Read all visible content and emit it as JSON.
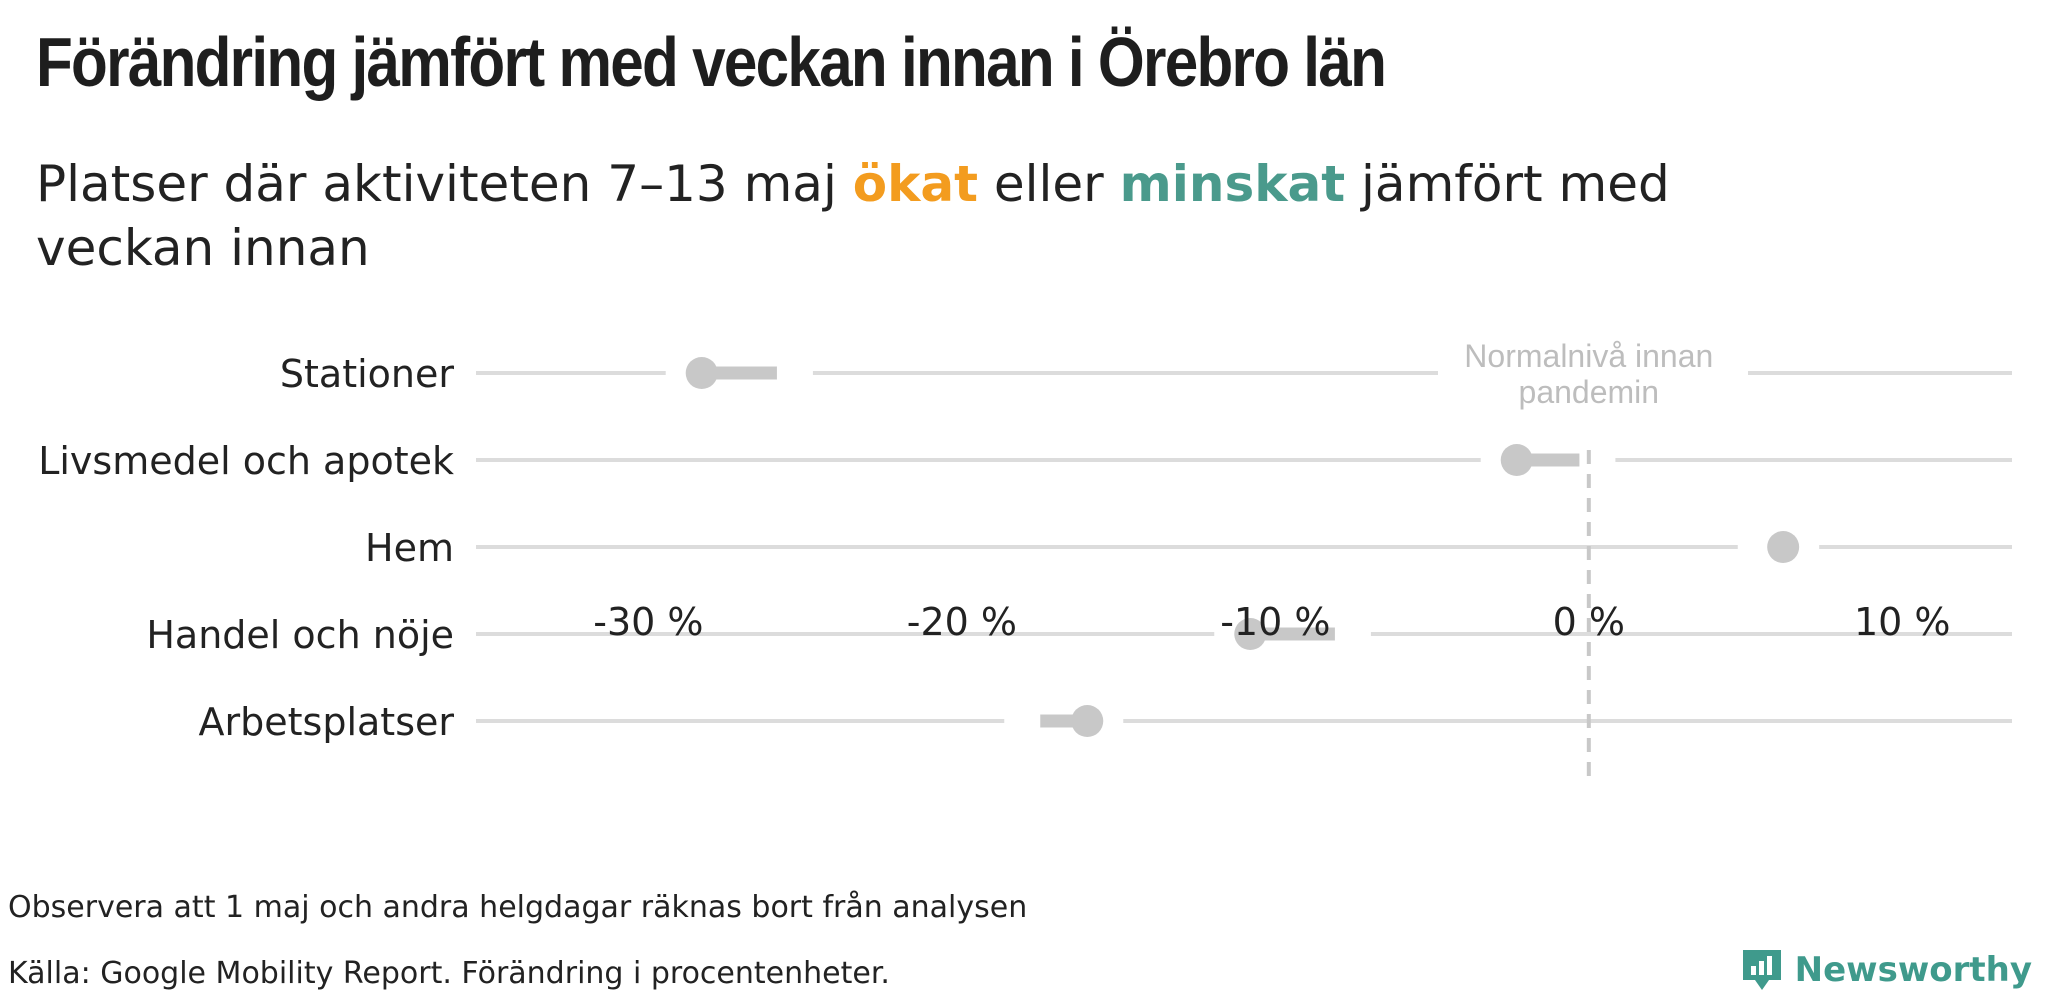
{
  "title": "Förändring jämfört med veckan innan i Örebro län",
  "subtitle": {
    "prefix": "Platser där aktiviteten 7–13 maj ",
    "up_word": "ökat",
    "middle": " eller ",
    "down_word": "minskat",
    "suffix": " jämfört med veckan innan"
  },
  "colors": {
    "up": "#f39c1f",
    "down": "#4a9a8c",
    "marker": "#c8c8c8",
    "gridline": "#dcdcdc",
    "reference": "#c8c8c8",
    "brand": "#3f9a8c"
  },
  "chart_data": {
    "type": "dot-arrow",
    "categories": [
      "Stationer",
      "Livsmedel och apotek",
      "Hem",
      "Handel och nöje",
      "Arbetsplatser"
    ],
    "series": [
      {
        "name": "veckan innan",
        "values": [
          -25.9,
          -0.3,
          5.9,
          -8.1,
          -17.5
        ]
      },
      {
        "name": "7–13 maj",
        "values": [
          -28.3,
          -2.3,
          6.2,
          -10.8,
          -16.0
        ]
      }
    ],
    "xlim": [
      -35.5,
      13.5
    ],
    "xticks": [
      -30,
      -20,
      -10,
      0,
      10
    ],
    "xtick_labels": [
      "-30 %",
      "-20 %",
      "-10 %",
      "0 %",
      "10 %"
    ],
    "reference_line": {
      "x": 0,
      "label_lines": [
        "Normalnivå innan",
        "pandemin"
      ]
    },
    "grid": true
  },
  "note": "Observera att 1 maj och andra helgdagar räknas bort från analysen",
  "source": "Källa: Google Mobility Report. Förändring i procentenheter.",
  "brand": {
    "name": "Newsworthy",
    "icon": "newsworthy-logo-icon"
  }
}
